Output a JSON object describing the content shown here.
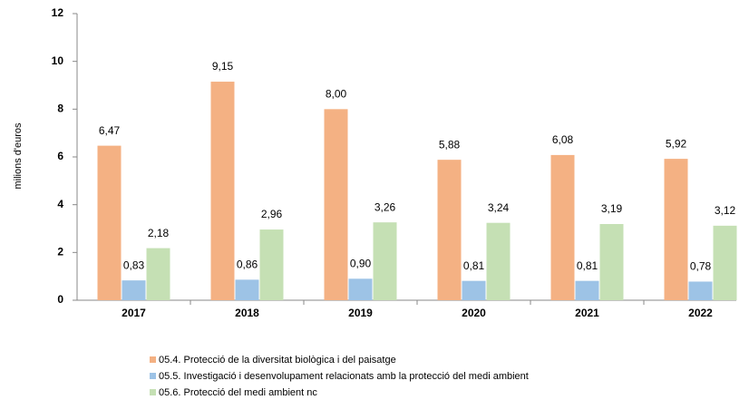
{
  "chart_data": {
    "type": "bar",
    "y_label": "milions d'euros",
    "categories": [
      "2017",
      "2018",
      "2019",
      "2020",
      "2021",
      "2022"
    ],
    "series": [
      {
        "name": "05.4. Protecció de la diversitat biològica i del paisatge",
        "color": "#f4b183",
        "values": [
          6.47,
          9.15,
          8.0,
          5.88,
          6.08,
          5.92
        ],
        "value_labels": [
          "6,47",
          "9,15",
          "8,00",
          "5,88",
          "6,08",
          "5,92"
        ]
      },
      {
        "name": "05.5. Investigació i desenvolupament relacionats amb la protecció del medi ambient",
        "color": "#9dc3e6",
        "values": [
          0.83,
          0.86,
          0.9,
          0.81,
          0.81,
          0.78
        ],
        "value_labels": [
          "0,83",
          "0,86",
          "0,90",
          "0,81",
          "0,81",
          "0,78"
        ]
      },
      {
        "name": "05.6. Protecció del medi ambient nc",
        "color": "#c5e0b4",
        "values": [
          2.18,
          2.96,
          3.26,
          3.24,
          3.19,
          3.12
        ],
        "value_labels": [
          "2,18",
          "2,96",
          "3,26",
          "3,24",
          "3,19",
          "3,12"
        ]
      }
    ],
    "ylim": [
      0,
      12
    ],
    "yticks": [
      0,
      2,
      4,
      6,
      8,
      10,
      12
    ],
    "grid": false,
    "legend": "bottom"
  }
}
